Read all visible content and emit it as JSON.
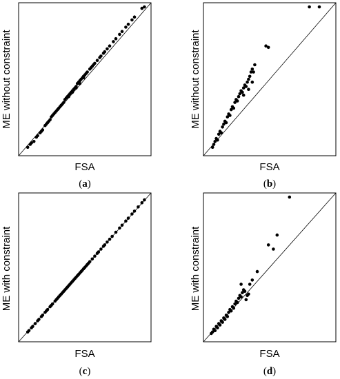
{
  "chart_data": [
    {
      "type": "scatter",
      "panel_label": "a",
      "xlabel": "FSA",
      "ylabel": "ME without constraint",
      "axis_ticks": false,
      "reference_line": "y = x",
      "xlim": [
        0,
        1
      ],
      "ylim": [
        0,
        1
      ],
      "points": [
        [
          0.04,
          0.03
        ],
        [
          0.06,
          0.05
        ],
        [
          0.07,
          0.06
        ],
        [
          0.09,
          0.07
        ],
        [
          0.11,
          0.1
        ],
        [
          0.12,
          0.11
        ],
        [
          0.14,
          0.13
        ],
        [
          0.15,
          0.14
        ],
        [
          0.16,
          0.15
        ],
        [
          0.18,
          0.18
        ],
        [
          0.19,
          0.19
        ],
        [
          0.2,
          0.2
        ],
        [
          0.21,
          0.21
        ],
        [
          0.22,
          0.22
        ],
        [
          0.23,
          0.24
        ],
        [
          0.24,
          0.25
        ],
        [
          0.25,
          0.26
        ],
        [
          0.26,
          0.27
        ],
        [
          0.27,
          0.28
        ],
        [
          0.28,
          0.29
        ],
        [
          0.29,
          0.3
        ],
        [
          0.3,
          0.31
        ],
        [
          0.31,
          0.32
        ],
        [
          0.32,
          0.33
        ],
        [
          0.33,
          0.34
        ],
        [
          0.34,
          0.36
        ],
        [
          0.35,
          0.37
        ],
        [
          0.36,
          0.38
        ],
        [
          0.37,
          0.39
        ],
        [
          0.38,
          0.4
        ],
        [
          0.39,
          0.41
        ],
        [
          0.4,
          0.42
        ],
        [
          0.41,
          0.43
        ],
        [
          0.42,
          0.44
        ],
        [
          0.43,
          0.45
        ],
        [
          0.44,
          0.47
        ],
        [
          0.45,
          0.48
        ],
        [
          0.46,
          0.49
        ],
        [
          0.47,
          0.5
        ],
        [
          0.48,
          0.51
        ],
        [
          0.49,
          0.52
        ],
        [
          0.5,
          0.53
        ],
        [
          0.51,
          0.54
        ],
        [
          0.52,
          0.55
        ],
        [
          0.54,
          0.57
        ],
        [
          0.56,
          0.59
        ],
        [
          0.58,
          0.61
        ],
        [
          0.6,
          0.63
        ],
        [
          0.62,
          0.65
        ],
        [
          0.63,
          0.66
        ],
        [
          0.65,
          0.68
        ],
        [
          0.66,
          0.69
        ],
        [
          0.68,
          0.71
        ],
        [
          0.7,
          0.73
        ],
        [
          0.73,
          0.76
        ],
        [
          0.75,
          0.78
        ],
        [
          0.78,
          0.81
        ],
        [
          0.8,
          0.83
        ],
        [
          0.83,
          0.86
        ],
        [
          0.85,
          0.88
        ],
        [
          0.88,
          0.91
        ],
        [
          0.9,
          0.93
        ],
        [
          0.96,
          0.99
        ],
        [
          0.98,
          1.0
        ],
        [
          0.37,
          0.38
        ],
        [
          0.4,
          0.41
        ],
        [
          0.43,
          0.44
        ],
        [
          0.46,
          0.47
        ],
        [
          0.49,
          0.51
        ],
        [
          0.55,
          0.58
        ],
        [
          0.57,
          0.6
        ]
      ]
    },
    {
      "type": "scatter",
      "panel_label": "b",
      "xlabel": "FSA",
      "ylabel": "ME without constraint",
      "axis_ticks": false,
      "reference_line": "y = x",
      "xlim": [
        0,
        1
      ],
      "ylim": [
        0,
        1
      ],
      "points": [
        [
          0.04,
          0.03
        ],
        [
          0.05,
          0.05
        ],
        [
          0.06,
          0.07
        ],
        [
          0.07,
          0.09
        ],
        [
          0.08,
          0.08
        ],
        [
          0.09,
          0.12
        ],
        [
          0.1,
          0.14
        ],
        [
          0.11,
          0.13
        ],
        [
          0.12,
          0.17
        ],
        [
          0.13,
          0.19
        ],
        [
          0.14,
          0.21
        ],
        [
          0.15,
          0.2
        ],
        [
          0.16,
          0.24
        ],
        [
          0.17,
          0.26
        ],
        [
          0.18,
          0.25
        ],
        [
          0.19,
          0.29
        ],
        [
          0.2,
          0.31
        ],
        [
          0.21,
          0.3
        ],
        [
          0.22,
          0.34
        ],
        [
          0.23,
          0.36
        ],
        [
          0.24,
          0.35
        ],
        [
          0.25,
          0.38
        ],
        [
          0.26,
          0.4
        ],
        [
          0.27,
          0.42
        ],
        [
          0.28,
          0.41
        ],
        [
          0.29,
          0.44
        ],
        [
          0.3,
          0.46
        ],
        [
          0.31,
          0.45
        ],
        [
          0.32,
          0.48
        ],
        [
          0.33,
          0.5
        ],
        [
          0.34,
          0.52
        ],
        [
          0.35,
          0.55
        ],
        [
          0.36,
          0.57
        ],
        [
          0.37,
          0.55
        ],
        [
          0.38,
          0.6
        ],
        [
          0.29,
          0.39
        ],
        [
          0.33,
          0.43
        ],
        [
          0.36,
          0.48
        ],
        [
          0.47,
          0.73
        ],
        [
          0.49,
          0.72
        ],
        [
          0.82,
          1.0
        ],
        [
          0.9,
          1.0
        ]
      ]
    },
    {
      "type": "scatter",
      "panel_label": "c",
      "xlabel": "FSA",
      "ylabel": "ME with constraint",
      "axis_ticks": false,
      "reference_line": "y = x",
      "xlim": [
        0,
        1
      ],
      "ylim": [
        0,
        1
      ],
      "points": [
        [
          0.04,
          0.04
        ],
        [
          0.05,
          0.05
        ],
        [
          0.07,
          0.07
        ],
        [
          0.08,
          0.08
        ],
        [
          0.1,
          0.1
        ],
        [
          0.12,
          0.12
        ],
        [
          0.13,
          0.13
        ],
        [
          0.15,
          0.15
        ],
        [
          0.16,
          0.16
        ],
        [
          0.18,
          0.18
        ],
        [
          0.19,
          0.19
        ],
        [
          0.2,
          0.2
        ],
        [
          0.22,
          0.22
        ],
        [
          0.23,
          0.23
        ],
        [
          0.24,
          0.24
        ],
        [
          0.26,
          0.26
        ],
        [
          0.27,
          0.27
        ],
        [
          0.28,
          0.28
        ],
        [
          0.29,
          0.29
        ],
        [
          0.3,
          0.3
        ],
        [
          0.31,
          0.31
        ],
        [
          0.32,
          0.32
        ],
        [
          0.33,
          0.33
        ],
        [
          0.34,
          0.34
        ],
        [
          0.35,
          0.35
        ],
        [
          0.36,
          0.36
        ],
        [
          0.37,
          0.37
        ],
        [
          0.38,
          0.38
        ],
        [
          0.39,
          0.39
        ],
        [
          0.4,
          0.4
        ],
        [
          0.41,
          0.41
        ],
        [
          0.42,
          0.42
        ],
        [
          0.43,
          0.43
        ],
        [
          0.44,
          0.44
        ],
        [
          0.45,
          0.45
        ],
        [
          0.46,
          0.46
        ],
        [
          0.47,
          0.47
        ],
        [
          0.48,
          0.48
        ],
        [
          0.49,
          0.49
        ],
        [
          0.5,
          0.5
        ],
        [
          0.51,
          0.51
        ],
        [
          0.52,
          0.52
        ],
        [
          0.53,
          0.53
        ],
        [
          0.54,
          0.54
        ],
        [
          0.56,
          0.56
        ],
        [
          0.58,
          0.58
        ],
        [
          0.6,
          0.6
        ],
        [
          0.61,
          0.61
        ],
        [
          0.63,
          0.63
        ],
        [
          0.65,
          0.65
        ],
        [
          0.66,
          0.66
        ],
        [
          0.68,
          0.68
        ],
        [
          0.7,
          0.7
        ],
        [
          0.72,
          0.72
        ],
        [
          0.75,
          0.75
        ],
        [
          0.78,
          0.78
        ],
        [
          0.8,
          0.8
        ],
        [
          0.83,
          0.83
        ],
        [
          0.85,
          0.85
        ],
        [
          0.88,
          0.88
        ],
        [
          0.9,
          0.9
        ],
        [
          0.93,
          0.93
        ],
        [
          0.96,
          0.96
        ],
        [
          0.98,
          0.98
        ]
      ]
    },
    {
      "type": "scatter",
      "panel_label": "d",
      "xlabel": "FSA",
      "ylabel": "ME with constraint",
      "axis_ticks": false,
      "reference_line": "y = x",
      "xlim": [
        0,
        1
      ],
      "ylim": [
        0,
        1
      ],
      "points": [
        [
          0.03,
          0.03
        ],
        [
          0.04,
          0.04
        ],
        [
          0.05,
          0.06
        ],
        [
          0.06,
          0.05
        ],
        [
          0.07,
          0.08
        ],
        [
          0.08,
          0.07
        ],
        [
          0.09,
          0.1
        ],
        [
          0.1,
          0.09
        ],
        [
          0.11,
          0.12
        ],
        [
          0.12,
          0.11
        ],
        [
          0.13,
          0.14
        ],
        [
          0.14,
          0.13
        ],
        [
          0.15,
          0.16
        ],
        [
          0.16,
          0.15
        ],
        [
          0.17,
          0.18
        ],
        [
          0.18,
          0.2
        ],
        [
          0.19,
          0.19
        ],
        [
          0.2,
          0.22
        ],
        [
          0.21,
          0.21
        ],
        [
          0.22,
          0.24
        ],
        [
          0.23,
          0.26
        ],
        [
          0.24,
          0.25
        ],
        [
          0.25,
          0.28
        ],
        [
          0.26,
          0.3
        ],
        [
          0.27,
          0.29
        ],
        [
          0.28,
          0.32
        ],
        [
          0.29,
          0.34
        ],
        [
          0.3,
          0.33
        ],
        [
          0.31,
          0.27
        ],
        [
          0.32,
          0.3
        ],
        [
          0.33,
          0.31
        ],
        [
          0.27,
          0.38
        ],
        [
          0.34,
          0.38
        ],
        [
          0.36,
          0.41
        ],
        [
          0.4,
          0.47
        ],
        [
          0.49,
          0.66
        ],
        [
          0.53,
          0.63
        ],
        [
          0.56,
          0.73
        ],
        [
          0.66,
          1.0
        ]
      ]
    }
  ]
}
